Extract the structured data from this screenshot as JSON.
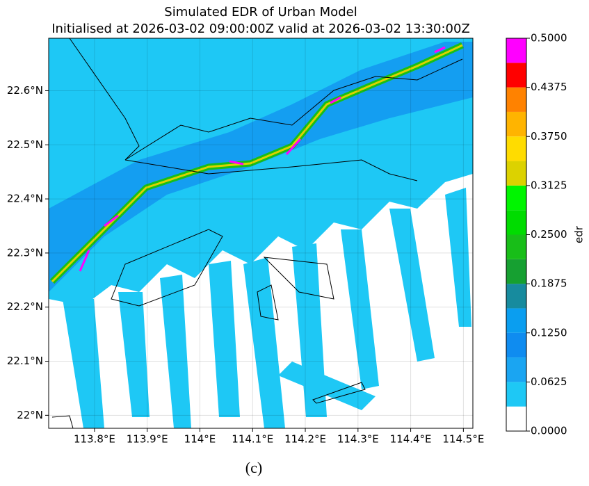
{
  "chart_data": {
    "type": "contourf",
    "title": "Simulated EDR of Urban Model",
    "subtitle": "Initialised at 2026-03-02 09:00:00Z valid at 2026-03-02 13:30:00Z",
    "xlim": [
      113.713,
      114.518
    ],
    "ylim": [
      21.976,
      22.697
    ],
    "xticks": [
      {
        "value": 113.8,
        "label": "113.8°E"
      },
      {
        "value": 113.9,
        "label": "113.9°E"
      },
      {
        "value": 114.0,
        "label": "114°E"
      },
      {
        "value": 114.1,
        "label": "114.1°E"
      },
      {
        "value": 114.2,
        "label": "114.2°E"
      },
      {
        "value": 114.3,
        "label": "114.3°E"
      },
      {
        "value": 114.4,
        "label": "114.4°E"
      },
      {
        "value": 114.5,
        "label": "114.5°E"
      }
    ],
    "yticks": [
      {
        "value": 22.0,
        "label": "22°N"
      },
      {
        "value": 22.1,
        "label": "22.1°N"
      },
      {
        "value": 22.2,
        "label": "22.2°N"
      },
      {
        "value": 22.3,
        "label": "22.3°N"
      },
      {
        "value": 22.4,
        "label": "22.4°N"
      },
      {
        "value": 22.5,
        "label": "22.5°N"
      },
      {
        "value": 22.6,
        "label": "22.6°N"
      }
    ],
    "grid": true,
    "colorbar": {
      "label": "edr",
      "lim": [
        0,
        0.5
      ],
      "ticks": [
        {
          "value": 0,
          "label": "0.0000"
        },
        {
          "value": 0.0625,
          "label": "0.0625"
        },
        {
          "value": 0.125,
          "label": "0.1250"
        },
        {
          "value": 0.1875,
          "label": "0.1875"
        },
        {
          "value": 0.25,
          "label": "0.2500"
        },
        {
          "value": 0.3125,
          "label": "0.3125"
        },
        {
          "value": 0.375,
          "label": "0.3750"
        },
        {
          "value": 0.4375,
          "label": "0.4375"
        },
        {
          "value": 0.5,
          "label": "0.5000"
        }
      ],
      "colors": [
        "#ffffff",
        "#1ec8f5",
        "#1aa5f2",
        "#0f8cf0",
        "#0a9ef0",
        "#178b9e",
        "#16a031",
        "#18be18",
        "#00dc00",
        "#00f500",
        "#dcd200",
        "#ffdc00",
        "#ffb400",
        "#ff8200",
        "#ff0000",
        "#ff00ff"
      ]
    }
  },
  "caption": "(c)"
}
